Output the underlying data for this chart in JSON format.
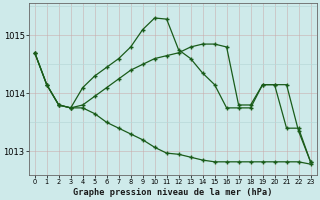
{
  "title": "Graphe pression niveau de la mer (hPa)",
  "bg_color": "#ceeaea",
  "grid_color_major": "#b8d8d8",
  "grid_color_minor": "#d0e8e8",
  "line_color": "#1a5c1a",
  "xlim": [
    -0.5,
    23.5
  ],
  "ylim": [
    1012.6,
    1015.55
  ],
  "yticks": [
    1013,
    1014,
    1015
  ],
  "xticks": [
    0,
    1,
    2,
    3,
    4,
    5,
    6,
    7,
    8,
    9,
    10,
    11,
    12,
    13,
    14,
    15,
    16,
    17,
    18,
    19,
    20,
    21,
    22,
    23
  ],
  "series_peak": [
    1014.7,
    1014.15,
    1013.8,
    1013.75,
    1014.1,
    1014.3,
    1014.45,
    1014.6,
    1014.8,
    1015.1,
    1015.3,
    1015.28,
    1014.75,
    1014.6,
    1014.35,
    1014.15,
    1013.75,
    1013.75,
    1013.75,
    1014.15,
    1014.15,
    1013.4,
    1013.4,
    1012.82
  ],
  "series_flat": [
    1014.7,
    1014.15,
    1013.8,
    1013.75,
    1013.8,
    1013.95,
    1014.1,
    1014.25,
    1014.4,
    1014.5,
    1014.6,
    1014.65,
    1014.7,
    1014.8,
    1014.85,
    1014.85,
    1014.8,
    1013.8,
    1013.8,
    1014.15,
    1014.15,
    1014.15,
    1013.35,
    1012.82
  ],
  "series_decline": [
    1014.7,
    1014.15,
    1013.8,
    1013.75,
    1013.75,
    1013.65,
    1013.5,
    1013.4,
    1013.3,
    1013.2,
    1013.07,
    1012.97,
    1012.95,
    1012.9,
    1012.85,
    1012.82,
    1012.82,
    1012.82,
    1012.82,
    1012.82,
    1012.82,
    1012.82,
    1012.82,
    1012.78
  ]
}
